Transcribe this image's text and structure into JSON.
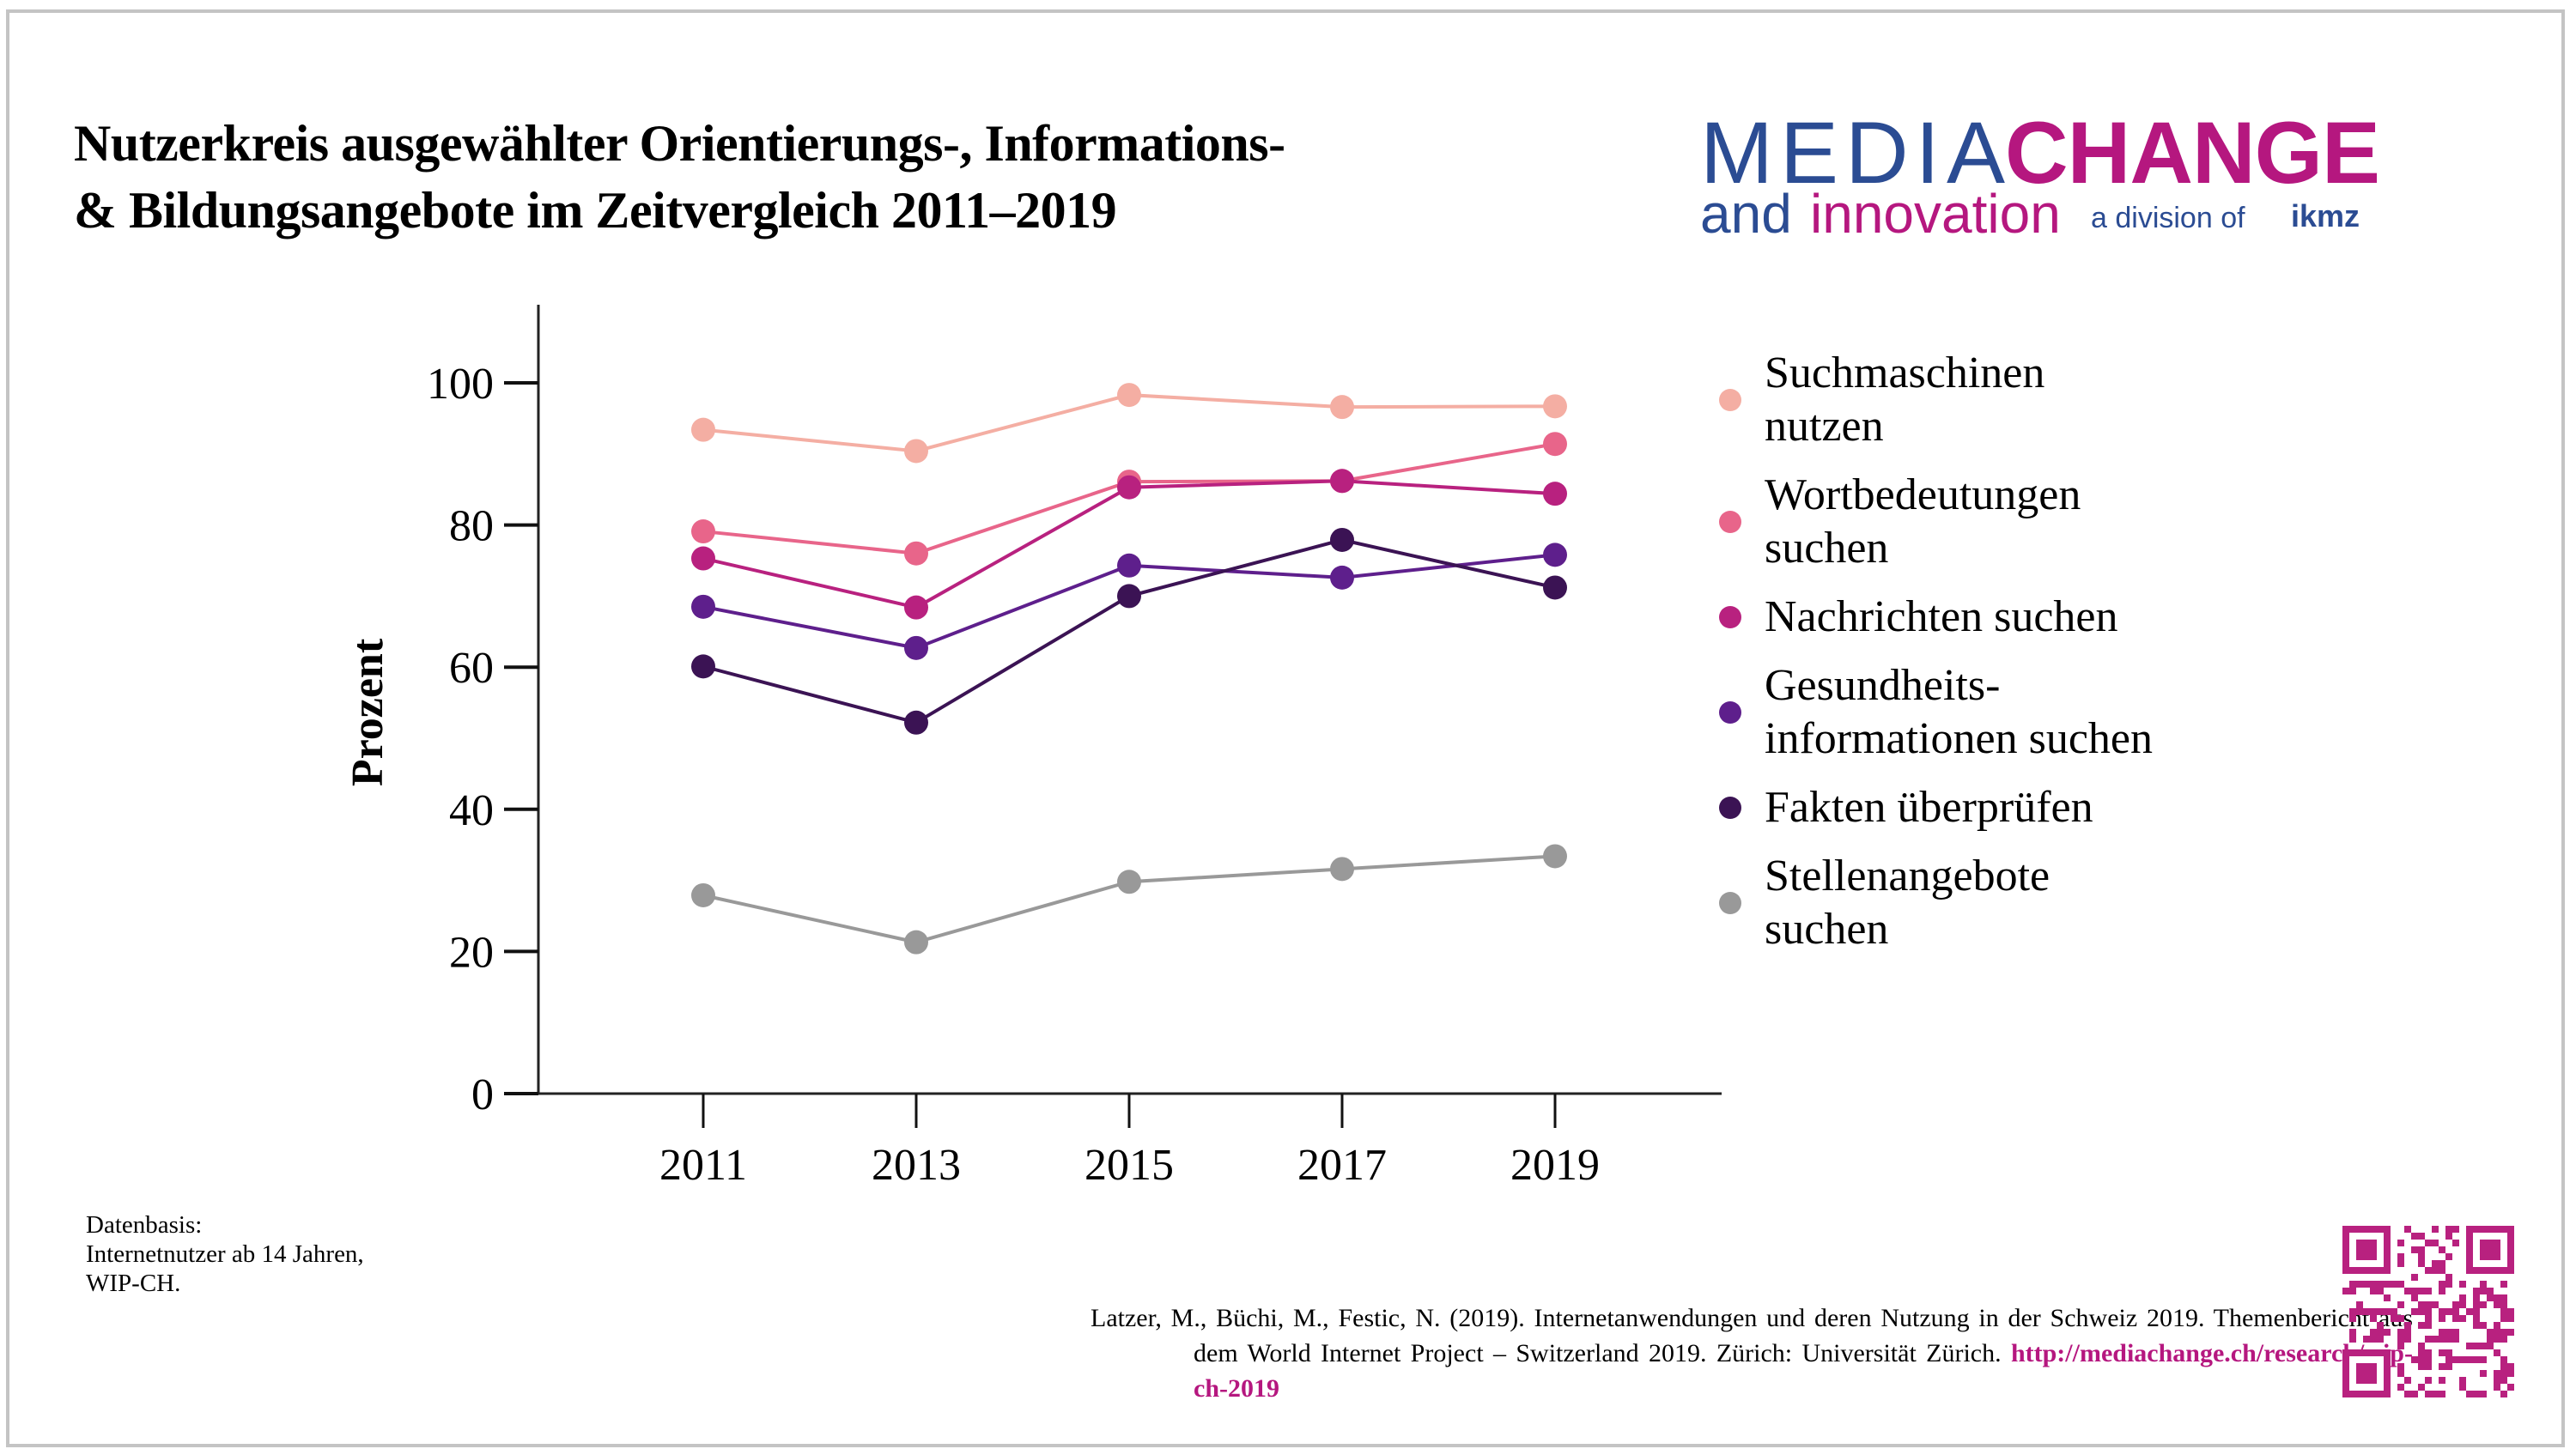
{
  "title": {
    "line1": "Nutzerkreis ausgewählter Orientierungs-, Informations-",
    "line2": "& Bildungsangebote im Zeitvergleich 2011–2019"
  },
  "logo": {
    "media": "MEDIA",
    "change": "CHANGE",
    "and": "and",
    "innovation": "innovation",
    "division": "a division of",
    "ikmz": "ikmz",
    "colors": {
      "blue": "#2b4c93",
      "magenta": "#b5177f"
    }
  },
  "chart_data": {
    "type": "line",
    "title": "Nutzerkreis ausgewählter Orientierungs-, Informations- & Bildungsangebote im Zeitvergleich 2011–2019",
    "xlabel": "",
    "ylabel": "Prozent",
    "x": [
      "2011",
      "2013",
      "2015",
      "2017",
      "2019"
    ],
    "y_ticks": [
      0,
      20,
      40,
      60,
      80,
      100
    ],
    "ylim": [
      0,
      110
    ],
    "grid": false,
    "legend_position": "right",
    "series": [
      {
        "name": "Suchmaschinen nutzen",
        "legend_lines": [
          "Suchmaschinen",
          "nutzen"
        ],
        "color": "#f4aea3",
        "values": [
          93.4,
          90.4,
          98.3,
          96.6,
          96.7
        ]
      },
      {
        "name": "Wortbedeutungen suchen",
        "legend_lines": [
          "Wortbedeutungen",
          "suchen"
        ],
        "color": "#e8658a",
        "values": [
          79.1,
          76.0,
          86.1,
          86.2,
          91.4
        ]
      },
      {
        "name": "Nachrichten suchen",
        "legend_lines": [
          "Nachrichten suchen"
        ],
        "color": "#b8217f",
        "values": [
          75.3,
          68.4,
          85.3,
          86.2,
          84.4
        ]
      },
      {
        "name": "Gesundheitsinformationen suchen",
        "legend_lines": [
          "Gesundheits-",
          "informationen suchen"
        ],
        "color": "#5e1f8c",
        "values": [
          68.5,
          62.7,
          74.3,
          72.6,
          75.8
        ]
      },
      {
        "name": "Fakten überprüfen",
        "legend_lines": [
          "Fakten überprüfen"
        ],
        "color": "#3b1354",
        "values": [
          60.1,
          52.2,
          70.0,
          77.9,
          71.2
        ]
      },
      {
        "name": "Stellenangebote suchen",
        "legend_lines": [
          "Stellenangebote",
          "suchen"
        ],
        "color": "#999999",
        "values": [
          27.9,
          21.3,
          29.8,
          31.6,
          33.4
        ]
      }
    ]
  },
  "source": {
    "line1": "Datenbasis:",
    "line2": "Internetnutzer ab 14 Jahren,",
    "line3": "WIP-CH."
  },
  "citation": {
    "text": "Latzer, M., Büchi, M., Festic, N. (2019). Internetanwendungen und deren Nutzung in der Schweiz 2019. Themenbericht aus dem World Internet Project – Switzerland 2019. Zürich: Universität Zürich. ",
    "link": "http://mediachange.ch/research/wip-ch-2019"
  },
  "qr_code": {
    "icon": "qr-code-icon",
    "color": "#b8217f"
  }
}
